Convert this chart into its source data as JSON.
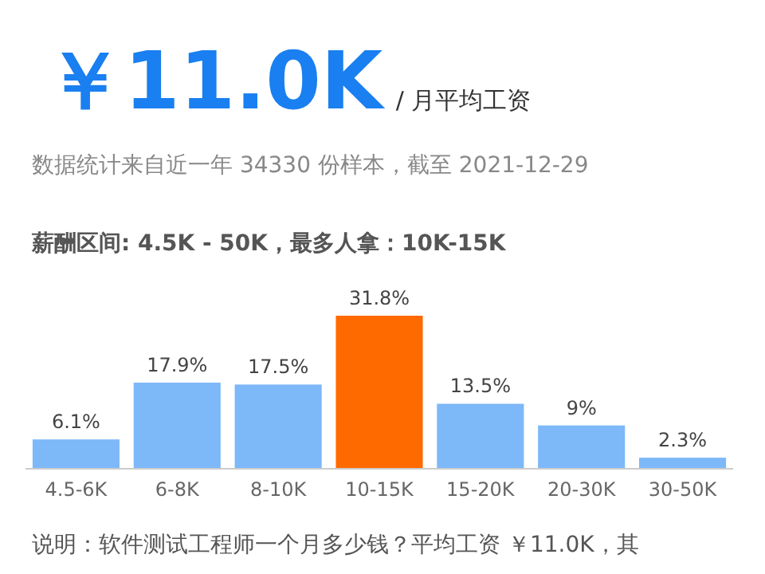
{
  "chart_data": {
    "type": "bar",
    "title": "￥11.0K",
    "subtitle": "/ 月平均工资",
    "annotations": [
      "数据统计来自近一年 34330 份样本，截至 2021-12-29",
      "薪酬区间: 4.5K - 50K，最多人拿：10K-15K",
      "说明：软件测试工程师一个月多少钱？平均工资 ￥11.0K，其"
    ],
    "categories": [
      "4.5-6K",
      "6-8K",
      "8-10K",
      "10-15K",
      "15-20K",
      "20-30K",
      "30-50K"
    ],
    "values": [
      6.1,
      17.9,
      17.5,
      31.8,
      13.5,
      9,
      2.3
    ],
    "value_labels": [
      "6.1%",
      "17.9%",
      "17.5%",
      "31.8%",
      "13.5%",
      "9%",
      "2.3%"
    ],
    "colors": [
      "#7db8f8",
      "#7db8f8",
      "#7db8f8",
      "#ff6a00",
      "#7db8f8",
      "#7db8f8",
      "#7db8f8"
    ]
  }
}
